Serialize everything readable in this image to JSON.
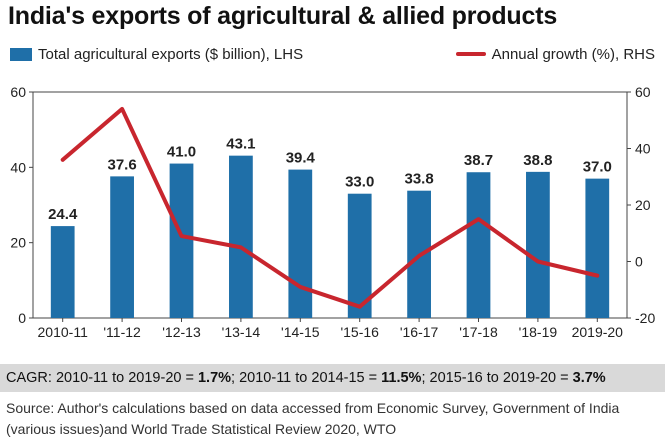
{
  "title": "India's exports of agricultural & allied products",
  "chart_data": {
    "type": "bar",
    "categories": [
      "2010-11",
      "'11-12",
      "'12-13",
      "'13-14",
      "'14-15",
      "'15-16",
      "'16-17",
      "'17-18",
      "'18-19",
      "2019-20"
    ],
    "series": [
      {
        "name": "Total agricultural exports ($ billion), LHS",
        "type": "bar",
        "axis": "left",
        "values": [
          24.4,
          37.6,
          41.0,
          43.1,
          39.4,
          33.0,
          33.8,
          38.7,
          38.8,
          37.0
        ],
        "labels": [
          "24.4",
          "37.6",
          "41.0",
          "43.1",
          "39.4",
          "33.0",
          "33.8",
          "38.7",
          "38.8",
          "37.0"
        ],
        "color": "#1f6fa8"
      },
      {
        "name": "Annual growth (%), RHS",
        "type": "line",
        "axis": "right",
        "values": [
          36,
          54,
          9,
          5,
          -9,
          -16,
          2,
          15,
          0,
          -5
        ],
        "color": "#c8262e"
      }
    ],
    "left_axis": {
      "min": 0,
      "max": 60,
      "ticks": [
        0,
        20,
        40,
        60
      ]
    },
    "right_axis": {
      "min": -20,
      "max": 60,
      "ticks": [
        -20,
        0,
        20,
        40,
        60
      ]
    },
    "grid": false,
    "legend": "top"
  },
  "cagr": {
    "p1": "CAGR: 2010-11 to 2019-20 = ",
    "v1": "1.7%",
    "p2": "; 2010-11 to 2014-15 = ",
    "v2": "11.5%",
    "p3": "; 2015-16 to 2019-20 = ",
    "v3": "3.7%"
  },
  "source": "Source: Author's calculations based on data accessed from Economic Survey, Government of India (various issues)and World Trade Statistical Review 2020, WTO"
}
